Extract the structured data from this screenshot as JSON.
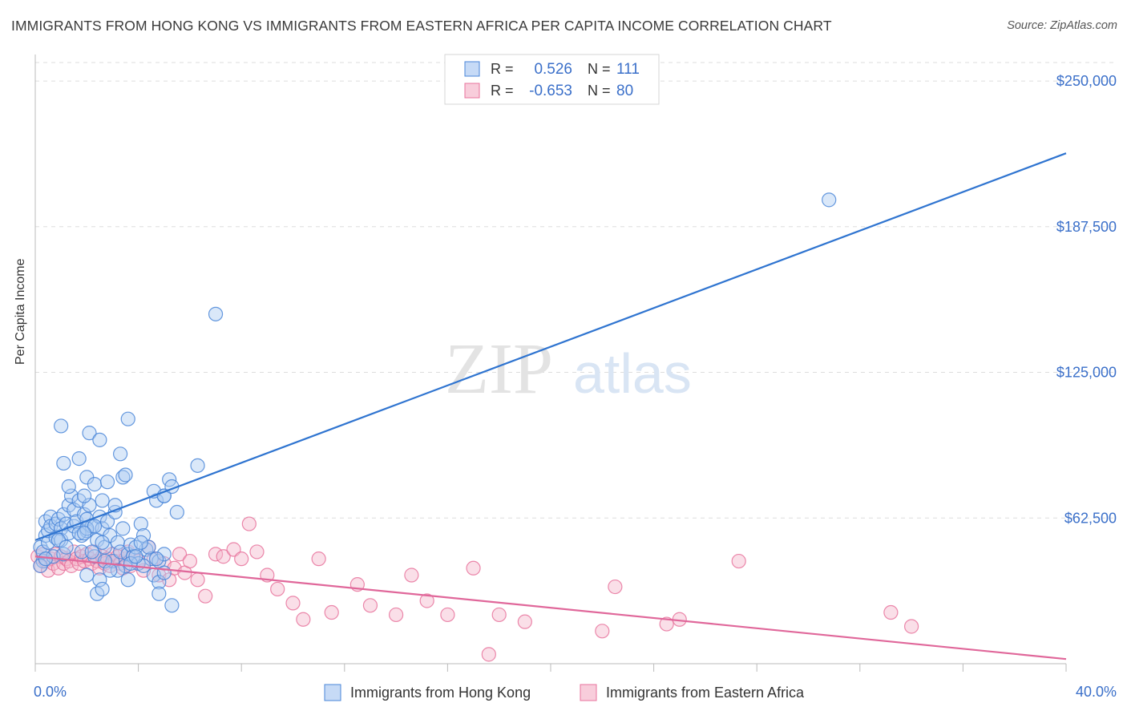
{
  "title": "IMMIGRANTS FROM HONG KONG VS IMMIGRANTS FROM EASTERN AFRICA PER CAPITA INCOME CORRELATION CHART",
  "source": "Source: ZipAtlas.com",
  "watermark": {
    "zip": "ZIP",
    "atlas": "atlas"
  },
  "colors": {
    "blue": "#4a86d8",
    "blue_fill": "#aecbf2",
    "pink": "#e8739c",
    "pink_fill": "#f5b8cc",
    "value_text": "#3a6fc9",
    "grid": "#dddddd"
  },
  "legend_stats": [
    {
      "r_label": "R =",
      "r_value": "0.526",
      "n_label": "N =",
      "n_value": "111"
    },
    {
      "r_label": "R =",
      "r_value": "-0.653",
      "n_label": "N =",
      "n_value": "80"
    }
  ],
  "chart_data": {
    "type": "scatter",
    "title": "IMMIGRANTS FROM HONG KONG VS IMMIGRANTS FROM EASTERN AFRICA PER CAPITA INCOME CORRELATION CHART",
    "xlabel": "",
    "ylabel": "Per Capita Income",
    "xlim": [
      0,
      40
    ],
    "ylim": [
      0,
      260000
    ],
    "x_tick_labels": [
      "0.0%",
      "40.0%"
    ],
    "y_ticks": [
      62500,
      125000,
      187500,
      250000
    ],
    "y_tick_labels": [
      "$62,500",
      "$125,000",
      "$187,500",
      "$250,000"
    ],
    "grid": true,
    "legend_position": "bottom",
    "series": [
      {
        "name": "Immigrants from Hong Kong",
        "color": "#4a86d8",
        "trend": {
          "x": [
            0,
            40
          ],
          "y": [
            53000,
            219000
          ]
        },
        "points": [
          [
            0.2,
            50000
          ],
          [
            0.3,
            44000
          ],
          [
            0.3,
            48000
          ],
          [
            0.4,
            55000
          ],
          [
            0.4,
            61000
          ],
          [
            0.5,
            52000
          ],
          [
            0.5,
            57000
          ],
          [
            0.6,
            63000
          ],
          [
            0.6,
            59000
          ],
          [
            0.7,
            46000
          ],
          [
            0.8,
            54000
          ],
          [
            0.8,
            60000
          ],
          [
            0.9,
            62000
          ],
          [
            1.0,
            58000
          ],
          [
            1.0,
            53000
          ],
          [
            1.1,
            64000
          ],
          [
            1.1,
            47000
          ],
          [
            1.2,
            60000
          ],
          [
            1.3,
            56000
          ],
          [
            1.3,
            68000
          ],
          [
            1.4,
            72000
          ],
          [
            1.5,
            66000
          ],
          [
            1.5,
            59000
          ],
          [
            1.6,
            61000
          ],
          [
            1.7,
            70000
          ],
          [
            1.8,
            55000
          ],
          [
            1.8,
            48000
          ],
          [
            1.9,
            64000
          ],
          [
            2.0,
            57000
          ],
          [
            2.0,
            62000
          ],
          [
            2.1,
            68000
          ],
          [
            2.2,
            59000
          ],
          [
            2.3,
            46000
          ],
          [
            2.4,
            53000
          ],
          [
            2.5,
            63000
          ],
          [
            2.6,
            58000
          ],
          [
            2.7,
            50000
          ],
          [
            2.8,
            61000
          ],
          [
            2.9,
            55000
          ],
          [
            3.0,
            44000
          ],
          [
            3.1,
            65000
          ],
          [
            3.2,
            52000
          ],
          [
            3.3,
            48000
          ],
          [
            3.4,
            58000
          ],
          [
            3.5,
            42000
          ],
          [
            3.6,
            47000
          ],
          [
            3.7,
            51000
          ],
          [
            3.8,
            46000
          ],
          [
            4.0,
            43000
          ],
          [
            4.1,
            60000
          ],
          [
            4.2,
            55000
          ],
          [
            4.3,
            49000
          ],
          [
            4.5,
            45000
          ],
          [
            4.6,
            38000
          ],
          [
            4.8,
            44000
          ],
          [
            5.0,
            47000
          ],
          [
            0.2,
            42000
          ],
          [
            0.4,
            45000
          ],
          [
            0.9,
            53000
          ],
          [
            1.2,
            50000
          ],
          [
            1.7,
            56000
          ],
          [
            2.2,
            48000
          ],
          [
            2.7,
            44000
          ],
          [
            3.2,
            40000
          ],
          [
            3.7,
            43000
          ],
          [
            4.4,
            50000
          ],
          [
            4.7,
            45000
          ],
          [
            5.5,
            65000
          ],
          [
            6.3,
            85000
          ],
          [
            7.0,
            150000
          ],
          [
            3.6,
            105000
          ],
          [
            2.1,
            99000
          ],
          [
            2.5,
            96000
          ],
          [
            1.7,
            88000
          ],
          [
            2.0,
            80000
          ],
          [
            2.3,
            77000
          ],
          [
            3.3,
            90000
          ],
          [
            3.4,
            80000
          ],
          [
            4.7,
            70000
          ],
          [
            5.0,
            72000
          ],
          [
            3.1,
            68000
          ],
          [
            2.0,
            58000
          ],
          [
            2.6,
            70000
          ],
          [
            1.1,
            86000
          ],
          [
            1.0,
            102000
          ],
          [
            1.3,
            76000
          ],
          [
            1.9,
            72000
          ],
          [
            2.8,
            78000
          ],
          [
            3.5,
            81000
          ],
          [
            4.6,
            74000
          ],
          [
            5.0,
            72000
          ],
          [
            5.2,
            79000
          ],
          [
            5.3,
            76000
          ],
          [
            2.3,
            59000
          ],
          [
            3.9,
            50000
          ],
          [
            4.2,
            42000
          ],
          [
            2.5,
            36000
          ],
          [
            2.4,
            30000
          ],
          [
            3.6,
            36000
          ],
          [
            4.8,
            35000
          ],
          [
            2.0,
            38000
          ],
          [
            2.6,
            32000
          ],
          [
            5.3,
            25000
          ],
          [
            4.8,
            30000
          ],
          [
            5.0,
            39000
          ],
          [
            3.9,
            46000
          ],
          [
            30.8,
            199000
          ],
          [
            2.6,
            52000
          ],
          [
            2.9,
            40000
          ],
          [
            4.1,
            52000
          ],
          [
            1.9,
            56000
          ]
        ]
      },
      {
        "name": "Immigrants from Eastern Africa",
        "color": "#e8739c",
        "trend": {
          "x": [
            0,
            40
          ],
          "y": [
            46000,
            2000
          ]
        },
        "points": [
          [
            0.1,
            46000
          ],
          [
            0.2,
            42000
          ],
          [
            0.3,
            47000
          ],
          [
            0.4,
            44000
          ],
          [
            0.5,
            40000
          ],
          [
            0.6,
            45000
          ],
          [
            0.7,
            43000
          ],
          [
            0.8,
            47000
          ],
          [
            0.9,
            41000
          ],
          [
            1.0,
            46000
          ],
          [
            1.1,
            43000
          ],
          [
            1.2,
            45000
          ],
          [
            1.3,
            44000
          ],
          [
            1.4,
            42000
          ],
          [
            1.5,
            48000
          ],
          [
            1.6,
            45000
          ],
          [
            1.7,
            43000
          ],
          [
            1.8,
            46000
          ],
          [
            1.9,
            44000
          ],
          [
            2.0,
            47000
          ],
          [
            2.1,
            45000
          ],
          [
            2.2,
            43000
          ],
          [
            2.3,
            48000
          ],
          [
            2.4,
            44000
          ],
          [
            2.5,
            41000
          ],
          [
            2.6,
            46000
          ],
          [
            2.7,
            43000
          ],
          [
            2.8,
            45000
          ],
          [
            2.9,
            42000
          ],
          [
            3.0,
            47000
          ],
          [
            3.1,
            44000
          ],
          [
            3.2,
            46000
          ],
          [
            3.3,
            43000
          ],
          [
            3.4,
            41000
          ],
          [
            3.5,
            45000
          ],
          [
            3.6,
            48000
          ],
          [
            3.7,
            42000
          ],
          [
            3.8,
            46000
          ],
          [
            4.0,
            44000
          ],
          [
            4.2,
            40000
          ],
          [
            4.4,
            50000
          ],
          [
            4.6,
            45000
          ],
          [
            4.8,
            38000
          ],
          [
            5.0,
            43000
          ],
          [
            5.2,
            36000
          ],
          [
            5.4,
            41000
          ],
          [
            5.6,
            47000
          ],
          [
            5.8,
            39000
          ],
          [
            6.0,
            44000
          ],
          [
            6.3,
            36000
          ],
          [
            6.6,
            29000
          ],
          [
            7.0,
            47000
          ],
          [
            7.3,
            46000
          ],
          [
            7.7,
            49000
          ],
          [
            8.0,
            45000
          ],
          [
            8.3,
            60000
          ],
          [
            8.6,
            48000
          ],
          [
            9.0,
            38000
          ],
          [
            9.4,
            32000
          ],
          [
            10.0,
            26000
          ],
          [
            10.4,
            19000
          ],
          [
            11.0,
            45000
          ],
          [
            11.5,
            22000
          ],
          [
            12.5,
            34000
          ],
          [
            13.0,
            25000
          ],
          [
            14.0,
            21000
          ],
          [
            14.6,
            38000
          ],
          [
            15.2,
            27000
          ],
          [
            16.0,
            21000
          ],
          [
            17.0,
            41000
          ],
          [
            18.0,
            21000
          ],
          [
            19.0,
            18000
          ],
          [
            22.5,
            33000
          ],
          [
            22.0,
            14000
          ],
          [
            24.5,
            17000
          ],
          [
            25.0,
            19000
          ],
          [
            27.3,
            44000
          ],
          [
            33.2,
            22000
          ],
          [
            34.0,
            16000
          ],
          [
            17.6,
            4000
          ]
        ]
      }
    ]
  }
}
